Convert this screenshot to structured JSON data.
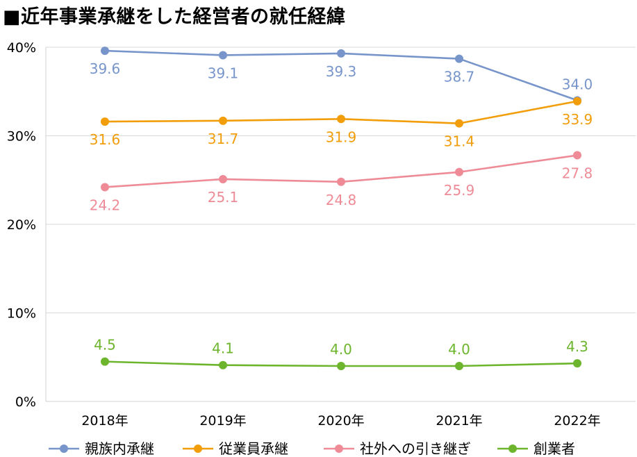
{
  "chart_data": {
    "type": "line",
    "title": "■近年事業承継をした経営者の就任経緯",
    "categories": [
      "2018年",
      "2019年",
      "2020年",
      "2021年",
      "2022年"
    ],
    "yticks": [
      "0%",
      "10%",
      "20%",
      "30%",
      "40%"
    ],
    "ylim": [
      0,
      40
    ],
    "grid": true,
    "legend_position": "bottom",
    "series": [
      {
        "name": "親族内承継",
        "color": "#7895CB",
        "label_pos": "below",
        "values": [
          39.6,
          39.1,
          39.3,
          38.7,
          34.0
        ]
      },
      {
        "name": "従業員承継",
        "color": "#F29D0A",
        "label_pos": "below",
        "values": [
          31.6,
          31.7,
          31.9,
          31.4,
          33.9
        ]
      },
      {
        "name": "社外への引き継ぎ",
        "color": "#EE8B97",
        "label_pos": "below",
        "values": [
          24.2,
          25.1,
          24.8,
          25.9,
          27.8
        ]
      },
      {
        "name": "創業者",
        "color": "#6CB52D",
        "label_pos": "above",
        "values": [
          4.5,
          4.1,
          4.0,
          4.0,
          4.3
        ]
      }
    ]
  }
}
